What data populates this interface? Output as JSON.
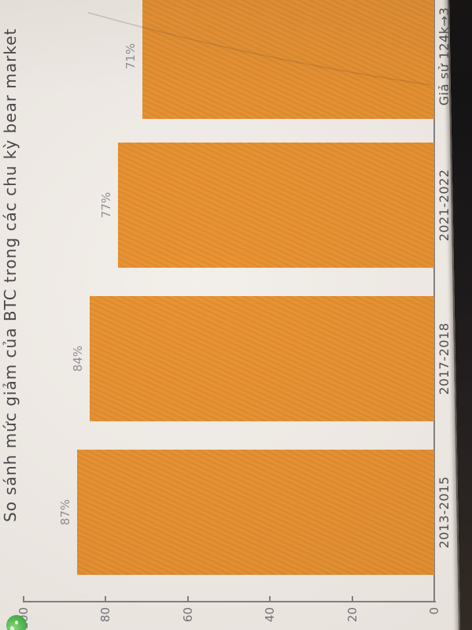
{
  "chart_data": {
    "type": "bar",
    "title": "So sánh mức giảm của BTC trong các chu kỳ bear market",
    "categories": [
      "2013-2015",
      "2017-2018",
      "2021-2022",
      "Giả sử 124k→3"
    ],
    "values": [
      87,
      84,
      77,
      71
    ],
    "bar_value_labels": [
      "87%",
      "84%",
      "77%",
      "71%"
    ],
    "xlabel": "",
    "ylabel": "",
    "ylim": [
      0,
      100
    ],
    "yticks": [
      100,
      80,
      60,
      40,
      20,
      0
    ],
    "grid": false,
    "legend_position": "none",
    "orientation": "vertical",
    "rotation_in_photo": "90deg counter-clockwise",
    "bar_color": "#e8891e",
    "plot_background": "#f2eee9",
    "axis_color": "#7d7d7d",
    "title_color": "#3d3d40",
    "tick_label_color": "#6e6e74",
    "value_label_color": "#8b8b92"
  },
  "photo": {
    "bezel_color": "#0a0a0a",
    "green_icon_color": "#4cc24e"
  }
}
